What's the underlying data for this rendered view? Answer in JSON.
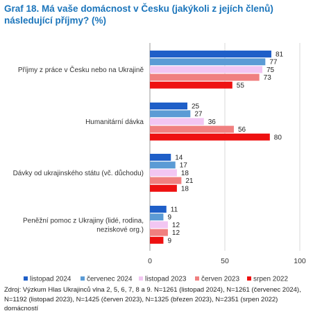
{
  "title": "Graf 18. Má vaše domácnost v Česku (jakýkoli z jejích členů) následující příjmy? (%)",
  "chart_data": {
    "type": "bar",
    "orientation": "horizontal",
    "categories": [
      "Příjmy z práce v Česku nebo na Ukrajině",
      "Humanitární dávka",
      "Dávky od ukrajinského státu (vč. důchodu)",
      "Peněžní pomoc z Ukrajiny (lidé, rodina, neziskové org.)"
    ],
    "category_lines": [
      [
        "Příjmy z práce v Česku nebo na Ukrajině"
      ],
      [
        "Humanitární dávka"
      ],
      [
        "Dávky od ukrajinského státu (vč. důchodu)"
      ],
      [
        "Peněžní pomoc z Ukrajiny (lidé, rodina,",
        "neziskové org.)"
      ]
    ],
    "series": [
      {
        "name": "listopad 2024",
        "color": "#1f5fc8",
        "values": [
          81,
          25,
          14,
          11
        ]
      },
      {
        "name": "červenec 2024",
        "color": "#5b9bd5",
        "values": [
          77,
          27,
          17,
          9
        ]
      },
      {
        "name": "listopad 2023",
        "color": "#f2c6f2",
        "values": [
          75,
          36,
          18,
          12
        ]
      },
      {
        "name": "červen 2023",
        "color": "#f08080",
        "values": [
          73,
          56,
          21,
          12
        ]
      },
      {
        "name": "srpen 2022",
        "color": "#ee1111",
        "values": [
          55,
          80,
          18,
          9
        ]
      }
    ],
    "xlim": [
      0,
      100
    ],
    "xticks": [
      0,
      50,
      100
    ],
    "data_labels": true,
    "legend_position": "bottom",
    "grid": true
  },
  "source": "Zdroj: Výzkum Hlas Ukrajinců vlna 2, 5, 6, 7, 8 a 9. N=1261 (listopad 2024), N=1261 (červenec 2024), N=1192 (listopad 2023), N=1425 (červen 2023), N=1325 (březen 2023), N=2351 (srpen 2022) domácností"
}
